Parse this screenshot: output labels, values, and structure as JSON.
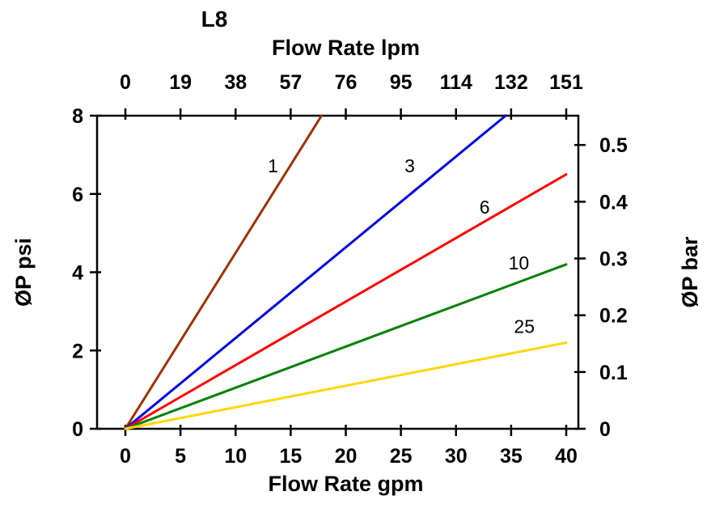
{
  "chart_data": {
    "type": "line",
    "title": "L8",
    "grid": false,
    "legend": "none (inline line labels)",
    "axes": {
      "top": {
        "label": "Flow Rate lpm",
        "ticks": [
          "0",
          "19",
          "38",
          "57",
          "76",
          "95",
          "114",
          "132",
          "151"
        ]
      },
      "bottom": {
        "label": "Flow Rate gpm",
        "ticks": [
          0,
          5,
          10,
          15,
          20,
          25,
          30,
          35,
          40
        ],
        "range": [
          0,
          40
        ]
      },
      "left": {
        "label": "ØP psi",
        "ticks": [
          0,
          2,
          4,
          6,
          8
        ],
        "range": [
          0,
          8
        ]
      },
      "right": {
        "label": "ØP bar",
        "ticks": [
          "0",
          "0.1",
          "0.2",
          "0.3",
          "0.4",
          "0.5"
        ],
        "psi_per_bar": 14.504
      }
    },
    "series": [
      {
        "name": "1",
        "color": "#993300",
        "points": [
          [
            0,
            0
          ],
          [
            17.8,
            8
          ]
        ],
        "label_at": [
          13.4,
          6.55
        ]
      },
      {
        "name": "3",
        "color": "#0000DD",
        "points": [
          [
            0,
            0
          ],
          [
            34.5,
            8
          ]
        ],
        "label_at": [
          25.8,
          6.55
        ]
      },
      {
        "name": "6",
        "color": "#FF0000",
        "points": [
          [
            0,
            0
          ],
          [
            40,
            6.5
          ]
        ],
        "label_at": [
          32.6,
          5.5
        ]
      },
      {
        "name": "10",
        "color": "#008000",
        "points": [
          [
            0,
            0
          ],
          [
            40,
            4.2
          ]
        ],
        "label_at": [
          35.7,
          4.07
        ]
      },
      {
        "name": "25",
        "color": "#FFD700",
        "points": [
          [
            0,
            0
          ],
          [
            40,
            2.2
          ]
        ],
        "label_at": [
          36.2,
          2.45
        ]
      }
    ],
    "colors": {
      "axis": "#000000",
      "text": "#000000",
      "background": "#FFFFFF"
    }
  }
}
